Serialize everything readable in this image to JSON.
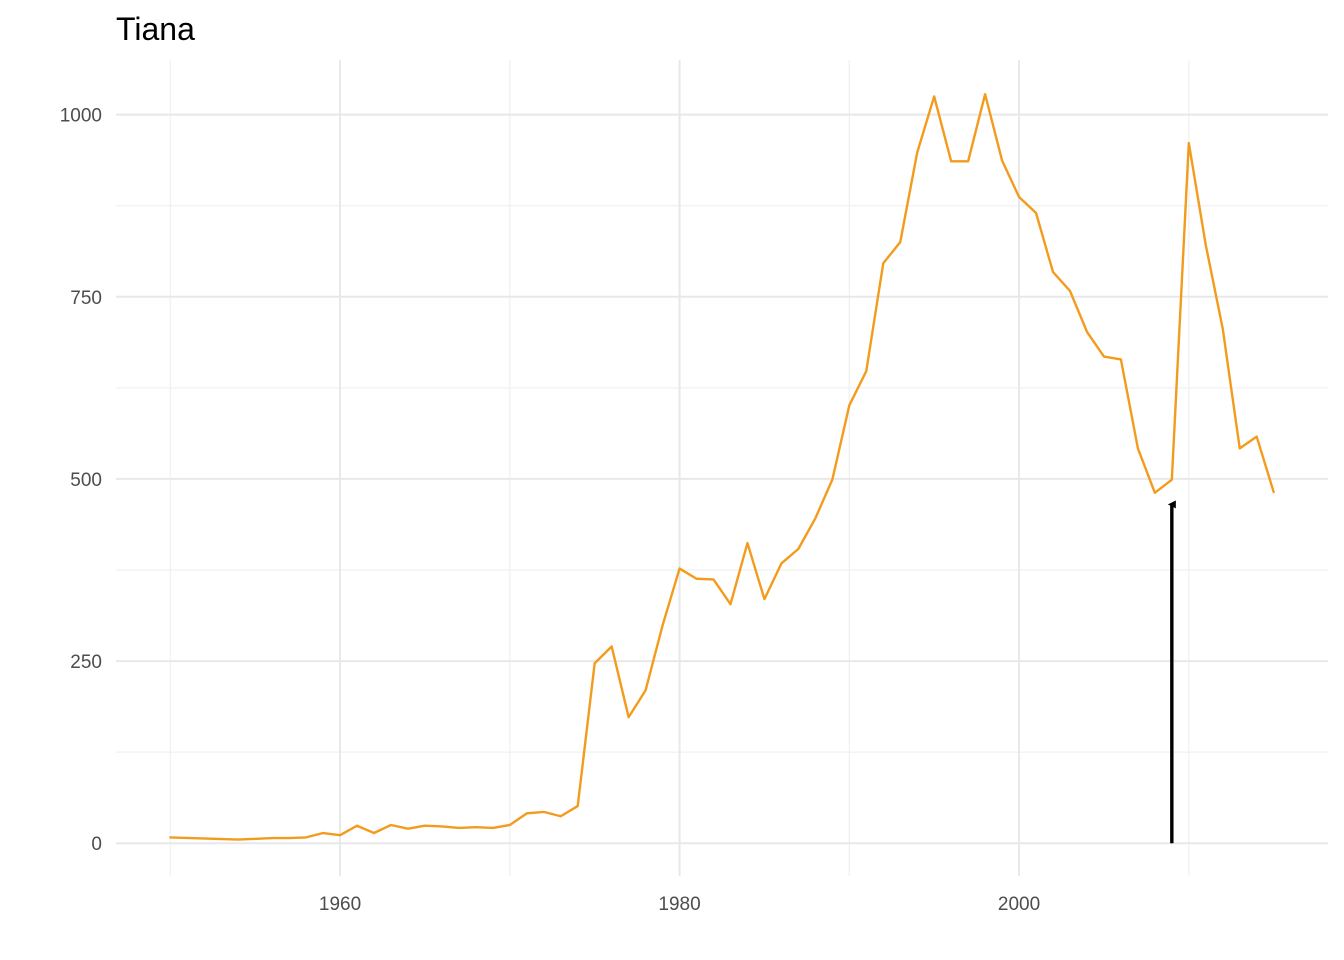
{
  "chart_data": {
    "type": "line",
    "title": "Tiana",
    "xlabel": "",
    "ylabel": "",
    "xlim": [
      1946.8,
      2018.2
    ],
    "ylim": [
      -45,
      1075
    ],
    "x_ticks_major": [
      1960,
      1980,
      2000
    ],
    "x_ticks_minor": [
      1950,
      1970,
      1990,
      2010
    ],
    "y_ticks_major": [
      0,
      250,
      500,
      750,
      1000
    ],
    "y_ticks_minor": [
      125,
      375,
      625,
      875
    ],
    "grid": true,
    "legend": "none",
    "series": [
      {
        "color": "#f39b1c",
        "x": [
          1950,
          1954,
          1956,
          1957,
          1958,
          1959,
          1960,
          1961,
          1962,
          1963,
          1964,
          1965,
          1966,
          1967,
          1968,
          1969,
          1970,
          1971,
          1972,
          1973,
          1974,
          1975,
          1976,
          1977,
          1978,
          1979,
          1980,
          1981,
          1982,
          1983,
          1984,
          1985,
          1986,
          1987,
          1988,
          1989,
          1990,
          1991,
          1992,
          1993,
          1994,
          1995,
          1996,
          1997,
          1998,
          1999,
          2000,
          2001,
          2002,
          2003,
          2004,
          2005,
          2006,
          2007,
          2008,
          2009,
          2010,
          2011,
          2012,
          2013,
          2014,
          2015
        ],
        "y": [
          8,
          5,
          7,
          7,
          8,
          14,
          11,
          24,
          14,
          25,
          20,
          24,
          23,
          21,
          22,
          21,
          25,
          41,
          43,
          37,
          51,
          247,
          270,
          173,
          210,
          299,
          377,
          363,
          362,
          328,
          412,
          335,
          384,
          404,
          446,
          499,
          601,
          648,
          796,
          825,
          948,
          1025,
          936,
          936,
          1028,
          937,
          887,
          865,
          784,
          758,
          702,
          668,
          664,
          542,
          481,
          499,
          961,
          821,
          706,
          542,
          558,
          482
        ]
      }
    ],
    "annotations": [
      {
        "type": "arrow",
        "x": 2009,
        "y_from": 0,
        "y_to": 465,
        "color": "#000000"
      }
    ]
  }
}
